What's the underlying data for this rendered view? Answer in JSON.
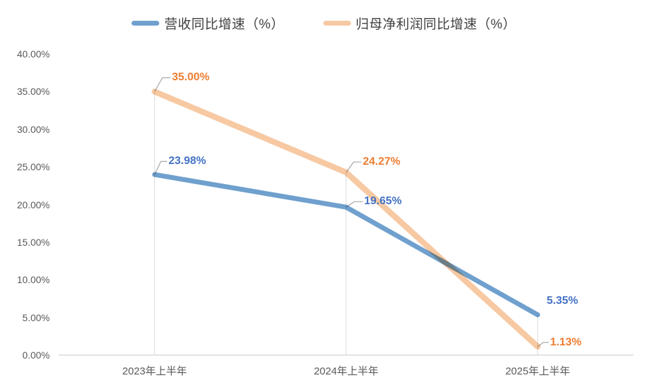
{
  "chart_data": {
    "type": "line",
    "title": "",
    "categories": [
      "2023年上半年",
      "2024年上半年",
      "2025年上半年"
    ],
    "series": [
      {
        "name": "营收同比增速（%）",
        "values": [
          23.98,
          19.65,
          5.35
        ],
        "labels": [
          "23.98%",
          "19.65%",
          "5.35%"
        ],
        "line_color": "#6FA0CE",
        "label_color": "#4472C4"
      },
      {
        "name": "归母净利润同比增速（%）",
        "values": [
          35.0,
          24.27,
          1.13
        ],
        "labels": [
          "35.00%",
          "24.27%",
          "1.13%"
        ],
        "line_color": "#F7C9A3",
        "label_color": "#ED7D31"
      }
    ],
    "ylim": [
      0,
      40
    ],
    "ytick_step": 5,
    "ytick_labels": [
      "0.00%",
      "5.00%",
      "10.00%",
      "15.00%",
      "20.00%",
      "25.00%",
      "30.00%",
      "35.00%",
      "40.00%"
    ],
    "grid": false,
    "legend_position": "top",
    "axis_color": "#D9D9D9",
    "drop_line_color": "#D9D9D9",
    "leader_line_color": "#A6A6A6",
    "tick_label_color": "#595959",
    "legend_text_color": "#404040"
  }
}
